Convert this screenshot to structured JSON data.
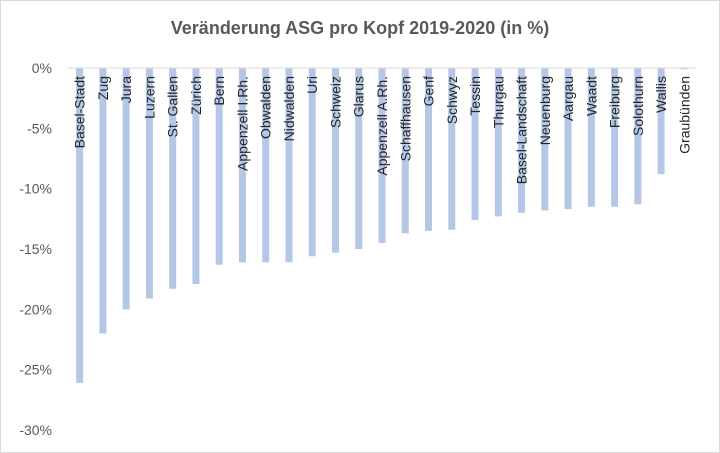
{
  "chart_data": {
    "type": "bar",
    "title": "Veränderung ASG pro Kopf 2019-2020 (in %)",
    "categories": [
      "Basel-Stadt",
      "Zug",
      "Jura",
      "Luzern",
      "St. Gallen",
      "Zürich",
      "Bern",
      "Appenzell I.Rh.",
      "Obwalden",
      "Nidwalden",
      "Uri",
      "Schweiz",
      "Glarus",
      "Appenzell A.Rh.",
      "Schaffhausen",
      "Genf",
      "Schwyz",
      "Tessin",
      "Thurgau",
      "Basel-Landschaft",
      "Neuenburg",
      "Aargau",
      "Waadt",
      "Freiburg",
      "Solothurn",
      "Wallis",
      "Graubünden"
    ],
    "series": [
      {
        "values": [
          -26.1,
          -22.0,
          -20.0,
          -19.1,
          -18.3,
          -17.9,
          -16.3,
          -16.1,
          -16.1,
          -16.1,
          -15.6,
          -15.3,
          -15.0,
          -14.5,
          -13.7,
          -13.5,
          -13.4,
          -12.6,
          -12.3,
          -12.0,
          -11.8,
          -11.7,
          -11.5,
          -11.5,
          -11.3,
          -8.8,
          -0.1
        ]
      }
    ],
    "ylim": [
      -30,
      0
    ],
    "yticks": [
      0,
      -5,
      -10,
      -15,
      -20,
      -25,
      -30
    ],
    "ytick_labels": [
      "0%",
      "-5%",
      "-10%",
      "-15%",
      "-20%",
      "-25%",
      "-30%"
    ],
    "grid": false,
    "legend": "none",
    "bar_color": "#b4c7e7",
    "axis_color": "#d9d9d9"
  }
}
